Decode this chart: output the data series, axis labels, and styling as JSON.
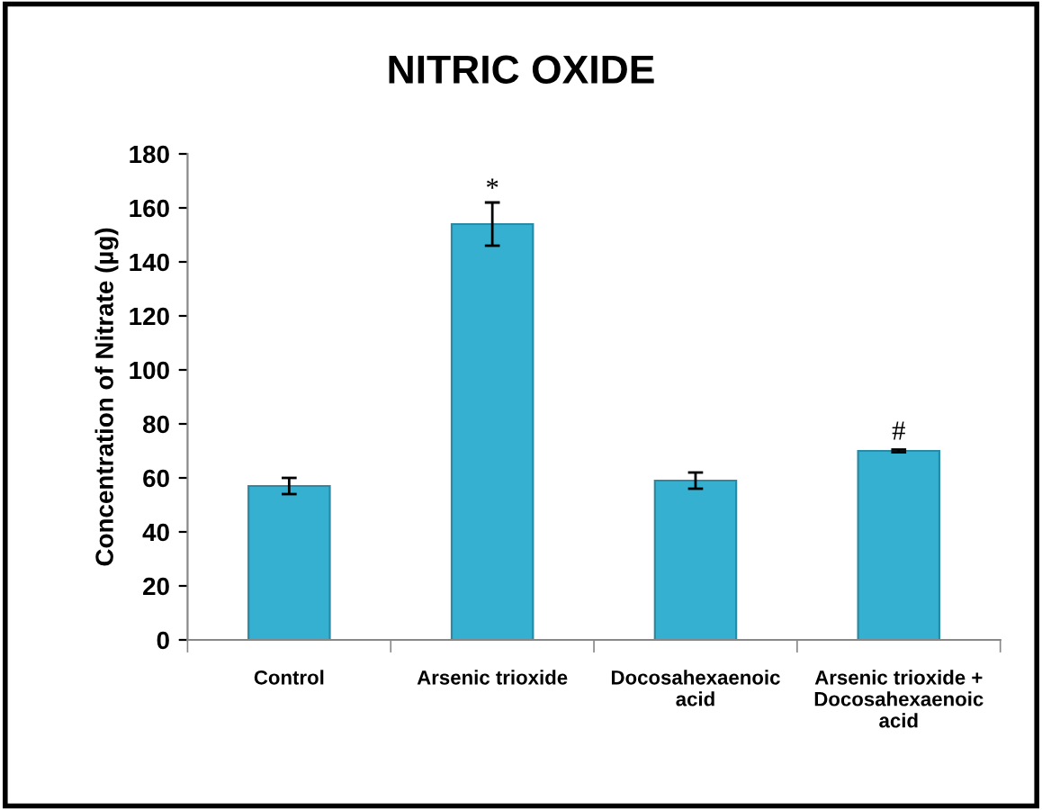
{
  "chart_data": {
    "type": "bar",
    "title": "NITRIC OXIDE",
    "ylabel": "Concentration of Nitrate (µg)",
    "categories": [
      "Control",
      "Arsenic trioxide",
      "Docosahexaenoic\nacid",
      "Arsenic trioxide +\nDocosahexaenoic\nacid"
    ],
    "values": [
      57,
      154,
      59,
      70
    ],
    "errors": [
      3,
      8,
      3,
      0.5
    ],
    "color": "#36b0d0",
    "ylim": [
      0,
      180
    ],
    "yticks": [
      0,
      20,
      40,
      60,
      80,
      100,
      120,
      140,
      160,
      180
    ],
    "annotations": [
      {
        "text": "*",
        "x": "Arsenic trioxide",
        "y": 162
      },
      {
        "text": "#",
        "x": "Arsenic trioxide +\nDocosahexaenoic\nacid",
        "y": 72
      }
    ],
    "grid": false,
    "legend": false
  }
}
